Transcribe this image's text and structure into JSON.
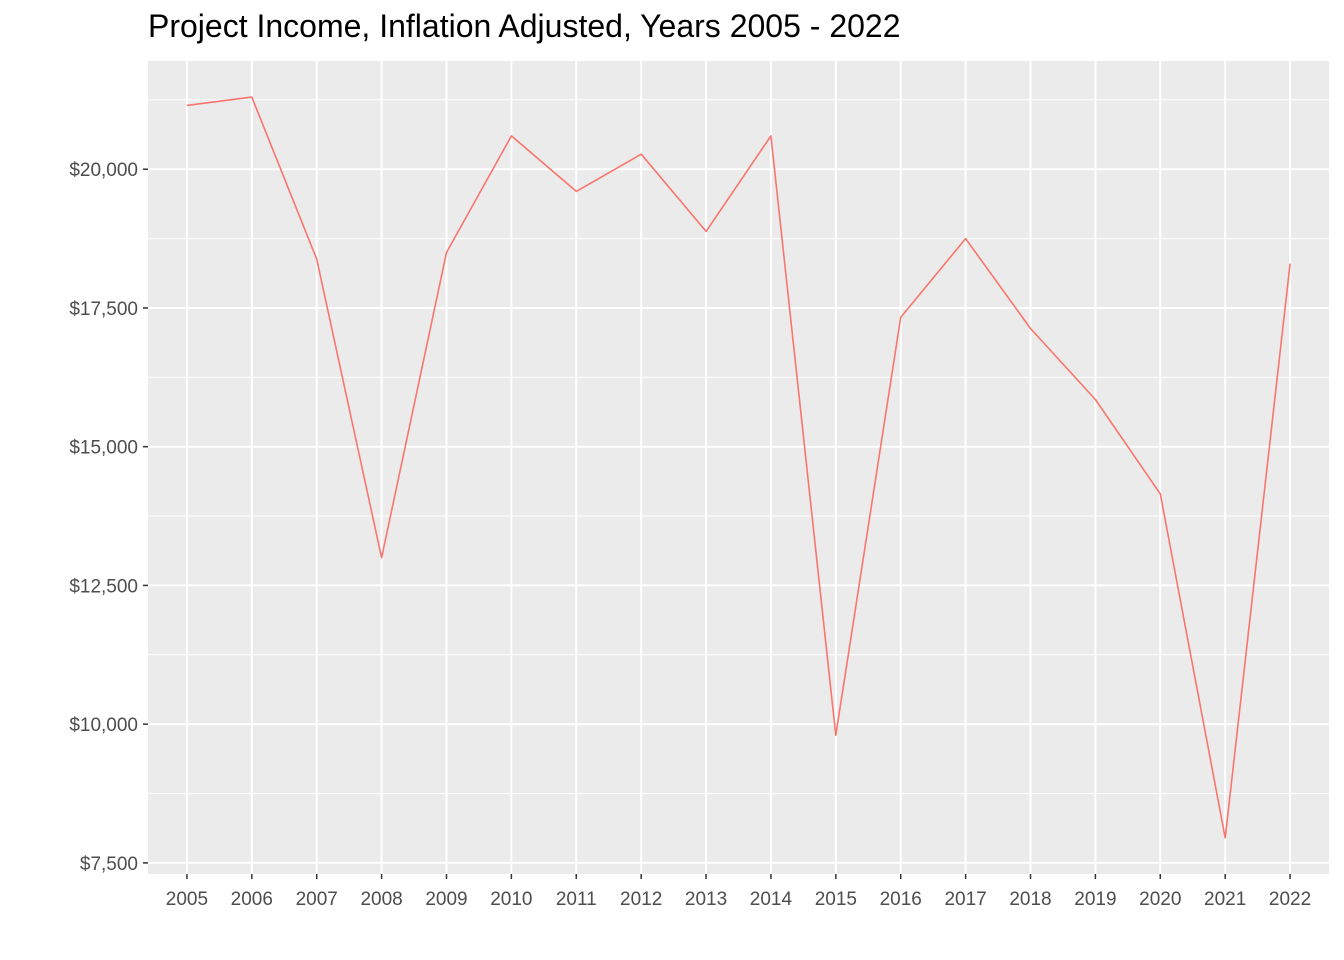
{
  "chart_data": {
    "type": "line",
    "title": "Project Income, Inflation Adjusted, Years 2005 - 2022",
    "xlabel": "",
    "ylabel": "",
    "x": [
      2005,
      2006,
      2007,
      2008,
      2009,
      2010,
      2011,
      2012,
      2013,
      2014,
      2015,
      2016,
      2017,
      2018,
      2019,
      2020,
      2021,
      2022
    ],
    "series": [
      {
        "values": [
          21150,
          21300,
          18380,
          13000,
          18500,
          20600,
          19600,
          20270,
          18880,
          20600,
          9800,
          17330,
          18750,
          17130,
          15850,
          14150,
          7950,
          18300
        ]
      }
    ],
    "y_ticks": [
      7500,
      10000,
      12500,
      15000,
      17500,
      20000
    ],
    "y_tick_labels": [
      "$7,500",
      "$10,000",
      "$12,500",
      "$15,000",
      "$17,500",
      "$20,000"
    ],
    "x_tick_labels": [
      "2005",
      "2006",
      "2007",
      "2008",
      "2009",
      "2010",
      "2011",
      "2012",
      "2013",
      "2014",
      "2015",
      "2016",
      "2017",
      "2018",
      "2019",
      "2020",
      "2021",
      "2022"
    ],
    "ylim": [
      7300,
      21950
    ],
    "xlim": [
      2004.4,
      2022.6
    ],
    "grid": true,
    "legend": "none",
    "colors": {
      "line": "#F8766D",
      "panel": "#EBEBEB",
      "grid": "#FFFFFF",
      "axis_text": "#4D4D4D",
      "tick": "#333333"
    }
  }
}
